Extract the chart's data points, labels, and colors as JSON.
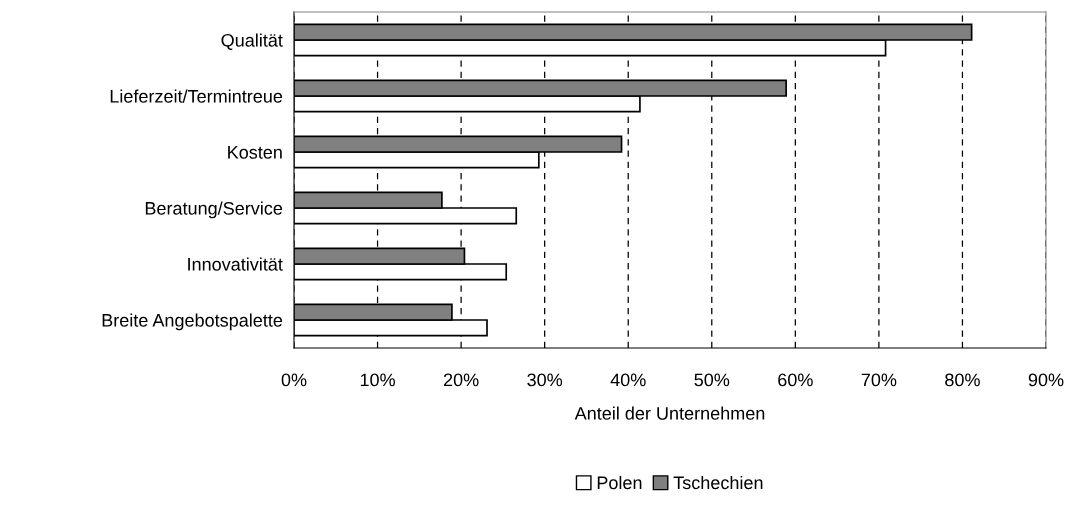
{
  "chart_data": {
    "type": "bar",
    "orientation": "horizontal",
    "xlabel": "Anteil der Unternehmen",
    "categories": [
      "Qualität",
      "Lieferzeit/Termintreue",
      "Kosten",
      "Beratung/Service",
      "Innovativität",
      "Breite Angebotspalette"
    ],
    "series": [
      {
        "name": "Polen",
        "color": "#ffffff",
        "values": [
          70.8,
          41.4,
          29.3,
          26.6,
          25.4,
          23.1
        ]
      },
      {
        "name": "Tschechien",
        "color": "#808080",
        "values": [
          81.1,
          58.9,
          39.2,
          17.7,
          20.4,
          18.9
        ]
      }
    ],
    "xlim": [
      0,
      90
    ],
    "xticks": [
      {
        "value": 0,
        "label": "0%"
      },
      {
        "value": 10,
        "label": "10%"
      },
      {
        "value": 20,
        "label": "20%"
      },
      {
        "value": 30,
        "label": "30%"
      },
      {
        "value": 40,
        "label": "40%"
      },
      {
        "value": 50,
        "label": "50%"
      },
      {
        "value": 60,
        "label": "60%"
      },
      {
        "value": 70,
        "label": "70%"
      },
      {
        "value": 80,
        "label": "80%"
      },
      {
        "value": 90,
        "label": "90%"
      }
    ],
    "grid": "x",
    "legend": "bottom"
  }
}
